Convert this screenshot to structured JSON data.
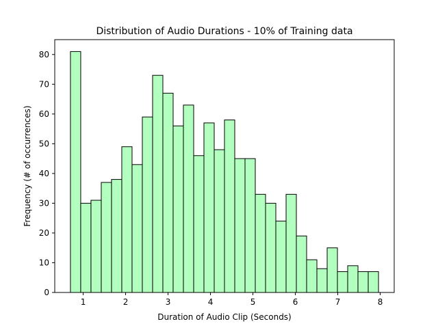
{
  "chart_data": {
    "type": "bar",
    "title": "Distribution of Audio Durations - 10% of Training data",
    "xlabel": "Duration of Audio Clip (Seconds)",
    "ylabel": "Frequency (# of occurrences)",
    "xlim": [
      0.33,
      8.33
    ],
    "ylim": [
      0,
      85
    ],
    "x_ticks": [
      1,
      2,
      3,
      4,
      5,
      6,
      7,
      8
    ],
    "y_ticks": [
      0,
      10,
      20,
      30,
      40,
      50,
      60,
      70,
      80
    ],
    "bin_start": 0.7,
    "bin_end": 7.96,
    "bar_color": "#b3ffbf",
    "edge_color": "#000000",
    "values": [
      81,
      30,
      31,
      37,
      38,
      49,
      43,
      59,
      73,
      67,
      56,
      63,
      46,
      57,
      48,
      58,
      45,
      45,
      33,
      30,
      24,
      33,
      19,
      11,
      8,
      15,
      7,
      9,
      7,
      7
    ],
    "grid": false,
    "legend": "none"
  }
}
